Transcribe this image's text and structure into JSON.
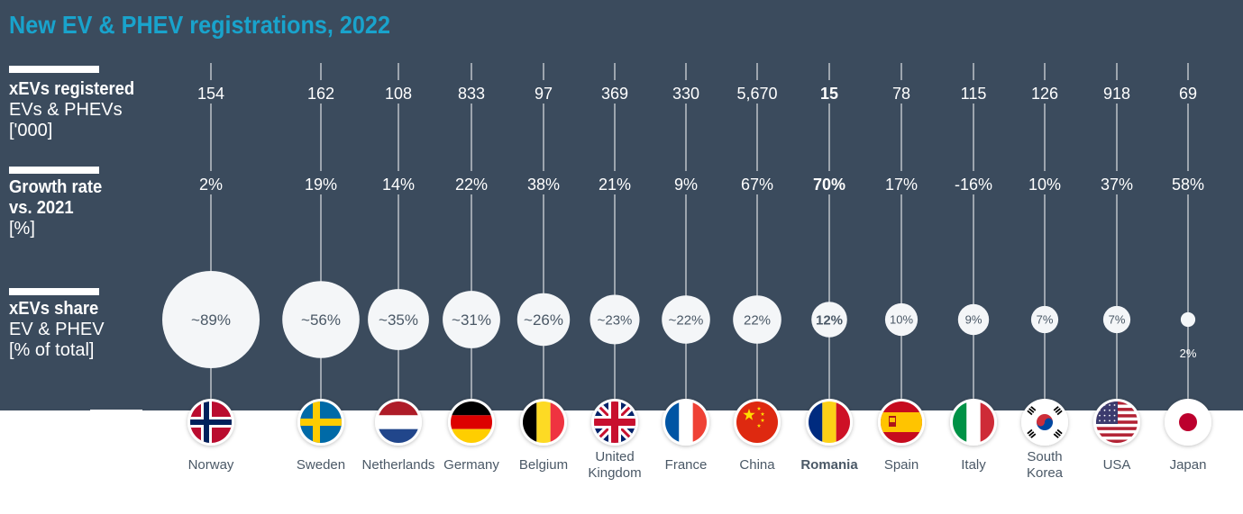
{
  "title": "New EV & PHEV registrations, 2022",
  "rows": {
    "registered": {
      "label_bold": "xEVs registered",
      "label_line2": "EVs & PHEVs",
      "label_line3": "['000]"
    },
    "growth": {
      "label_bold": "Growth rate",
      "label_line2": "vs. 2021",
      "label_line3": "[%]"
    },
    "share": {
      "label_bold": "xEVs share",
      "label_line2": "EV & PHEV",
      "label_line3": "[% of total]"
    }
  },
  "chart_data": {
    "type": "table",
    "title": "New EV & PHEV registrations, 2022",
    "highlight": "Romania",
    "countries": [
      {
        "name": "Norway",
        "flag": "norway-flag",
        "registered": "154",
        "growth": "2%",
        "share": 89,
        "share_label": "~89%"
      },
      {
        "name": "Sweden",
        "flag": "sweden-flag",
        "registered": "162",
        "growth": "19%",
        "share": 56,
        "share_label": "~56%"
      },
      {
        "name": "Netherlands",
        "flag": "netherlands-flag",
        "registered": "108",
        "growth": "14%",
        "share": 35,
        "share_label": "~35%"
      },
      {
        "name": "Germany",
        "flag": "germany-flag",
        "registered": "833",
        "growth": "22%",
        "share": 31,
        "share_label": "~31%"
      },
      {
        "name": "Belgium",
        "flag": "belgium-flag",
        "registered": "97",
        "growth": "38%",
        "share": 26,
        "share_label": "~26%"
      },
      {
        "name": "United Kingdom",
        "flag": "uk-flag",
        "registered": "369",
        "growth": "21%",
        "share": 23,
        "share_label": "~23%"
      },
      {
        "name": "France",
        "flag": "france-flag",
        "registered": "330",
        "growth": "9%",
        "share": 22,
        "share_label": "~22%"
      },
      {
        "name": "China",
        "flag": "china-flag",
        "registered": "5,670",
        "growth": "67%",
        "share": 22,
        "share_label": "22%"
      },
      {
        "name": "Romania",
        "flag": "romania-flag",
        "registered": "15",
        "growth": "70%",
        "share": 12,
        "share_label": "12%"
      },
      {
        "name": "Spain",
        "flag": "spain-flag",
        "registered": "78",
        "growth": "17%",
        "share": 10,
        "share_label": "10%"
      },
      {
        "name": "Italy",
        "flag": "italy-flag",
        "registered": "115",
        "growth": "-16%",
        "share": 9,
        "share_label": "9%"
      },
      {
        "name": "South Korea",
        "flag": "south-korea-flag",
        "registered": "126",
        "growth": "10%",
        "share": 7,
        "share_label": "7%"
      },
      {
        "name": "USA",
        "flag": "usa-flag",
        "registered": "918",
        "growth": "37%",
        "share": 7,
        "share_label": "7%"
      },
      {
        "name": "Japan",
        "flag": "japan-flag",
        "registered": "69",
        "growth": "58%",
        "share": 2,
        "share_label": "2%"
      }
    ]
  },
  "colors": {
    "panel": "#3b4b5d",
    "title": "#19a3cc",
    "bubble": "#f4f6f8",
    "bubble_text": "#4a5866",
    "country_text": "#4a5866"
  }
}
